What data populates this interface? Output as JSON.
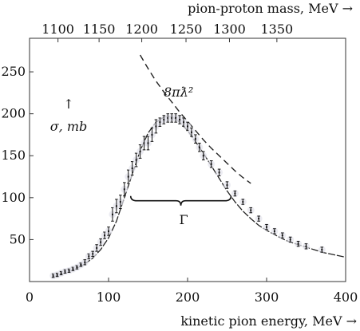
{
  "chart_data": {
    "type": "scatter",
    "xlabel": "kinetic pion energy, MeV →",
    "ylabel": "σ, mb",
    "ylabel_arrow": "↑",
    "top_xlabel": "pion-proton mass, MeV →",
    "xlim": [
      0,
      400
    ],
    "ylim": [
      0,
      290
    ],
    "x_ticks": [
      "0",
      "100",
      "200",
      "300",
      "400"
    ],
    "y_ticks": [
      "50",
      "100",
      "150",
      "200",
      "250"
    ],
    "top_ticks": [
      {
        "label": "1100",
        "x": 36
      },
      {
        "label": "1150",
        "x": 88
      },
      {
        "label": "1200",
        "x": 142
      },
      {
        "label": "1250",
        "x": 198
      },
      {
        "label": "1300",
        "x": 253
      },
      {
        "label": "1350",
        "x": 313
      }
    ],
    "grid": false,
    "annotations": {
      "unitarity_label": "8πƛ²",
      "width_label": "Γ"
    },
    "width_brace": {
      "x_start": 128,
      "x_end": 255,
      "y": 102
    },
    "series": [
      {
        "kind": "points",
        "x": [
          30,
          35,
          40,
          45,
          50,
          55,
          60,
          65,
          70,
          75,
          80,
          85,
          90,
          95,
          100,
          105,
          110,
          115,
          120,
          125,
          130,
          135,
          140,
          145,
          150,
          155,
          160,
          165,
          170,
          175,
          180,
          185,
          190,
          195,
          200,
          205,
          210,
          215,
          220,
          230,
          240,
          250,
          260,
          270,
          280,
          290,
          300,
          310,
          320,
          330,
          340,
          350,
          370
        ],
        "y": [
          7,
          8,
          10,
          12,
          13,
          15,
          17,
          20,
          23,
          30,
          33,
          40,
          47,
          55,
          60,
          80,
          90,
          95,
          110,
          125,
          135,
          145,
          155,
          165,
          165,
          175,
          185,
          190,
          193,
          195,
          195,
          195,
          193,
          190,
          185,
          178,
          170,
          160,
          150,
          140,
          130,
          115,
          105,
          95,
          85,
          75,
          65,
          60,
          55,
          50,
          45,
          42,
          38
        ],
        "yerr": [
          2,
          2,
          2,
          2,
          2,
          2,
          2,
          2,
          3,
          3,
          3,
          4,
          4,
          4,
          5,
          8,
          8,
          8,
          8,
          8,
          8,
          8,
          8,
          8,
          8,
          8,
          8,
          5,
          5,
          5,
          5,
          5,
          5,
          5,
          5,
          5,
          5,
          5,
          5,
          4,
          4,
          4,
          3,
          3,
          3,
          3,
          3,
          3,
          3,
          3,
          3,
          3,
          3
        ]
      },
      {
        "kind": "fit",
        "x": [
          28,
          40,
          50,
          60,
          70,
          80,
          90,
          100,
          110,
          120,
          130,
          140,
          150,
          160,
          170,
          175,
          180,
          185,
          190,
          200,
          210,
          220,
          230,
          240,
          250,
          260,
          270,
          280,
          290,
          300,
          310,
          320,
          330,
          340,
          350,
          360,
          370,
          380,
          390,
          400
        ],
        "y": [
          5,
          9,
          12,
          16,
          21,
          28,
          38,
          52,
          72,
          100,
          128,
          156,
          177,
          190,
          196,
          197,
          196,
          194,
          190,
          180,
          167,
          153,
          138,
          123,
          108,
          95,
          84,
          75,
          67,
          61,
          56,
          51,
          47,
          44,
          41,
          38,
          35,
          33,
          31,
          29
        ]
      },
      {
        "kind": "unitarity",
        "x": [
          140,
          150,
          160,
          170,
          180,
          190,
          200,
          210,
          220,
          230,
          240,
          250,
          260,
          270,
          280
        ],
        "y": [
          270,
          254,
          239,
          226,
          214,
          202,
          191,
          180,
          169,
          159,
          150,
          141,
          132,
          124,
          117
        ]
      }
    ]
  }
}
